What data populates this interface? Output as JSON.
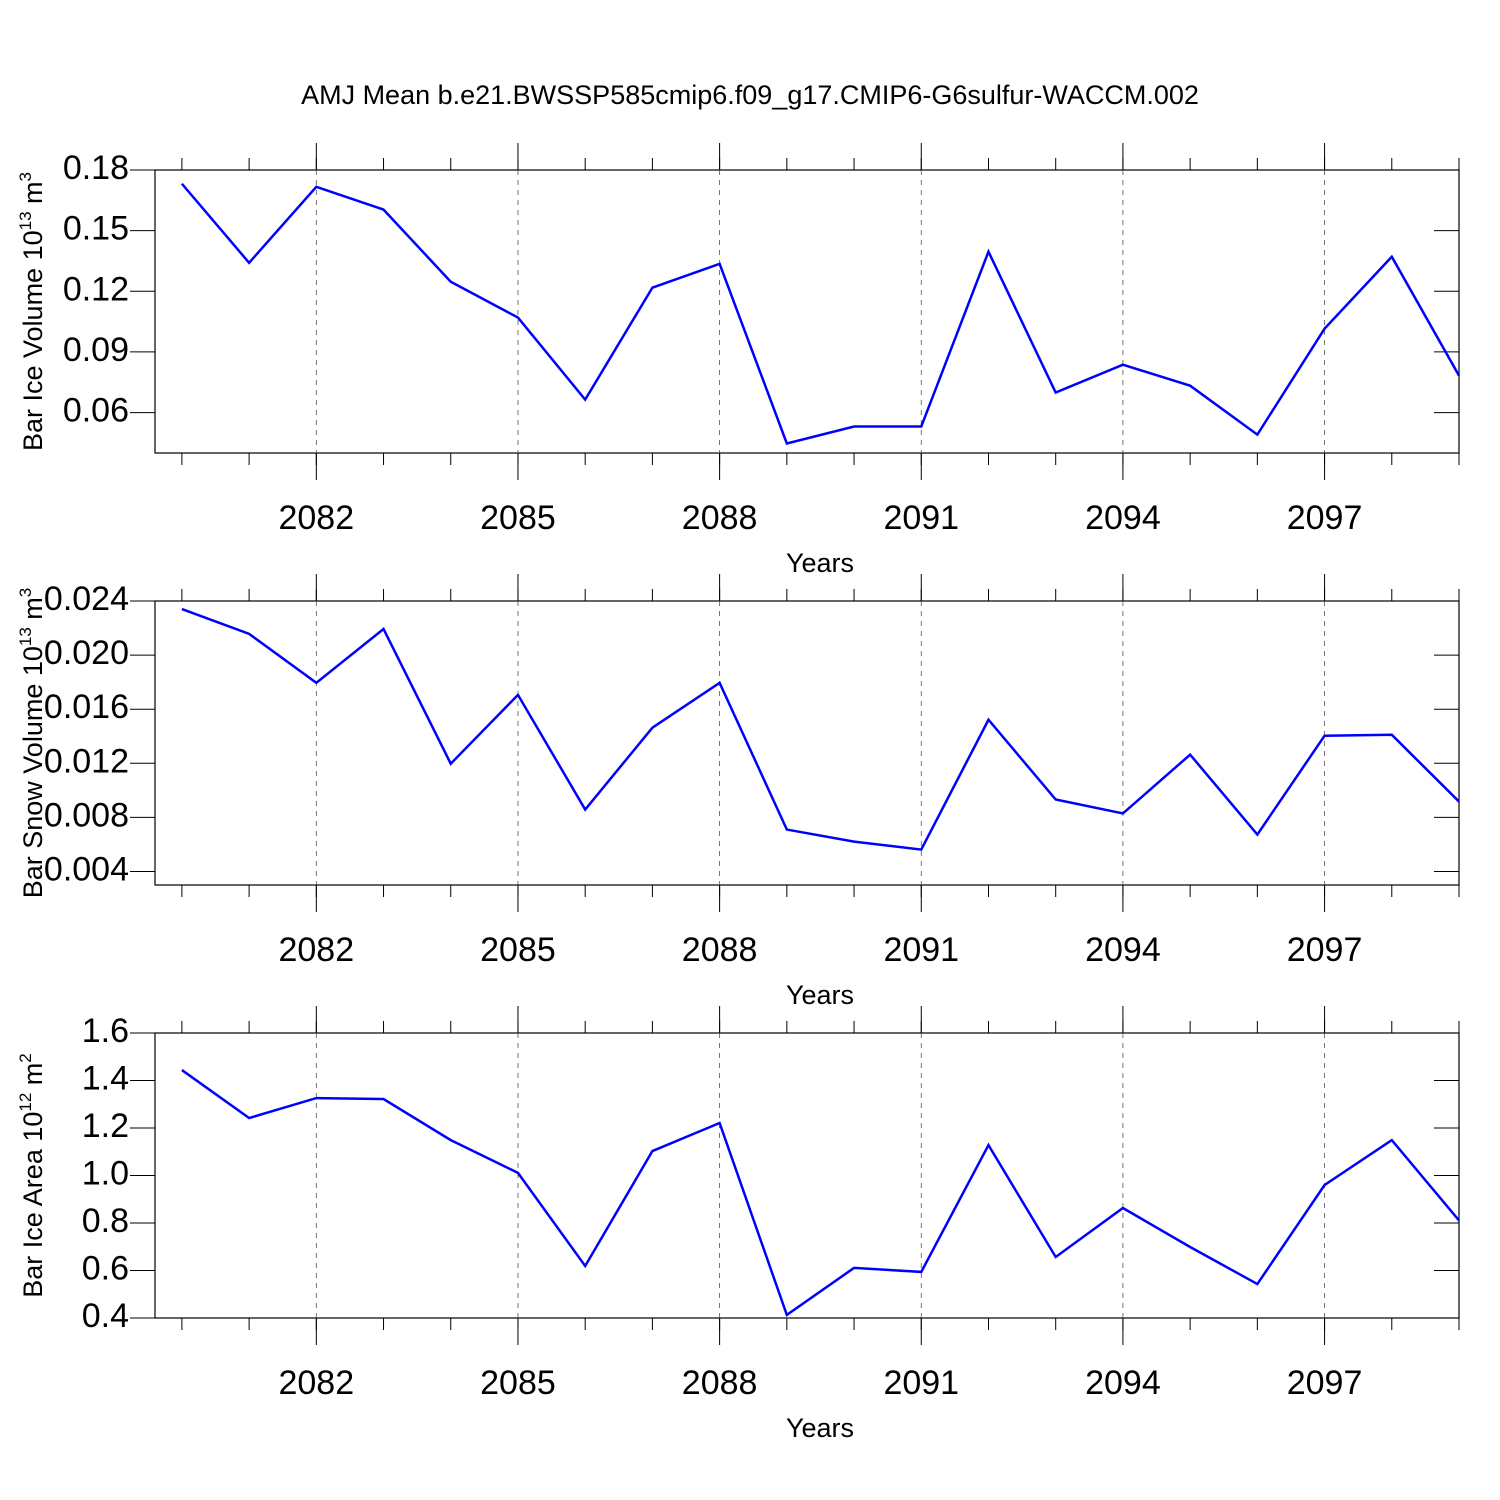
{
  "title": "AMJ Mean b.e21.BWSSP585cmip6.f09_g17.CMIP6-G6sulfur-WACCM.002",
  "chart_data": [
    {
      "type": "line",
      "ylabel": [
        "Bar Ice Volume 10",
        "13",
        " m",
        "3"
      ],
      "xlabel": "Years",
      "x": [
        2080,
        2081,
        2082,
        2083,
        2084,
        2085,
        2086,
        2087,
        2088,
        2089,
        2090,
        2091,
        2092,
        2093,
        2094,
        2095,
        2096,
        2097,
        2098,
        2099
      ],
      "series": [
        {
          "color": "#0000ff",
          "values": [
            0.1732,
            0.1341,
            0.1717,
            0.1604,
            0.1247,
            0.107,
            0.0664,
            0.1218,
            0.1336,
            0.0447,
            0.0531,
            0.0531,
            0.1396,
            0.0699,
            0.0837,
            0.0733,
            0.0491,
            0.1015,
            0.1371,
            0.0783
          ]
        }
      ],
      "xlim": [
        2079.6,
        2099
      ],
      "xticks": [
        2082,
        2085,
        2088,
        2091,
        2094,
        2097
      ],
      "ylim": [
        0.04,
        0.18
      ],
      "yticks": [
        0.06,
        0.09,
        0.12,
        0.15,
        0.18
      ],
      "xgrid": true
    },
    {
      "type": "line",
      "ylabel": [
        "Bar Snow Volume 10",
        "13",
        " m",
        "3"
      ],
      "xlabel": "Years",
      "x": [
        2080,
        2081,
        2082,
        2083,
        2084,
        2085,
        2086,
        2087,
        2088,
        2089,
        2090,
        2091,
        2092,
        2093,
        2094,
        2095,
        2096,
        2097,
        2098,
        2099
      ],
      "series": [
        {
          "color": "#0000ff",
          "values": [
            0.0234,
            0.02157,
            0.01795,
            0.02193,
            0.01197,
            0.01706,
            0.00858,
            0.01463,
            0.01795,
            0.0071,
            0.00621,
            0.00562,
            0.01522,
            0.00932,
            0.00829,
            0.01264,
            0.00673,
            0.01404,
            0.01411,
            0.00917
          ]
        }
      ],
      "xlim": [
        2079.6,
        2099
      ],
      "xticks": [
        2082,
        2085,
        2088,
        2091,
        2094,
        2097
      ],
      "ylim": [
        0.003,
        0.024
      ],
      "yticks": [
        0.004,
        0.008,
        0.012,
        0.016,
        {
          "value": 0.02,
          "label": "0.020"
        },
        0.024
      ],
      "xgrid": true
    },
    {
      "type": "line",
      "ylabel": [
        "Bar Ice Area 10",
        "12",
        " m",
        "2"
      ],
      "xlabel": "Years",
      "x": [
        2080,
        2081,
        2082,
        2083,
        2084,
        2085,
        2086,
        2087,
        2088,
        2089,
        2090,
        2091,
        2092,
        2093,
        2094,
        2095,
        2096,
        2097,
        2098,
        2099
      ],
      "series": [
        {
          "color": "#0000ff",
          "values": [
            1.444,
            1.242,
            1.326,
            1.322,
            1.149,
            1.011,
            0.619,
            1.103,
            1.221,
            0.413,
            0.611,
            0.594,
            1.128,
            0.657,
            0.863,
            0.699,
            0.543,
            0.96,
            1.149,
            0.811
          ]
        }
      ],
      "xlim": [
        2079.6,
        2099
      ],
      "xticks": [
        2082,
        2085,
        2088,
        2091,
        2094,
        2097
      ],
      "ylim": [
        0.4,
        1.6
      ],
      "yticks": [
        0.4,
        0.6,
        0.8,
        {
          "value": 1,
          "label": "1.0"
        },
        1.2,
        1.4,
        1.6
      ],
      "xgrid": true
    }
  ]
}
